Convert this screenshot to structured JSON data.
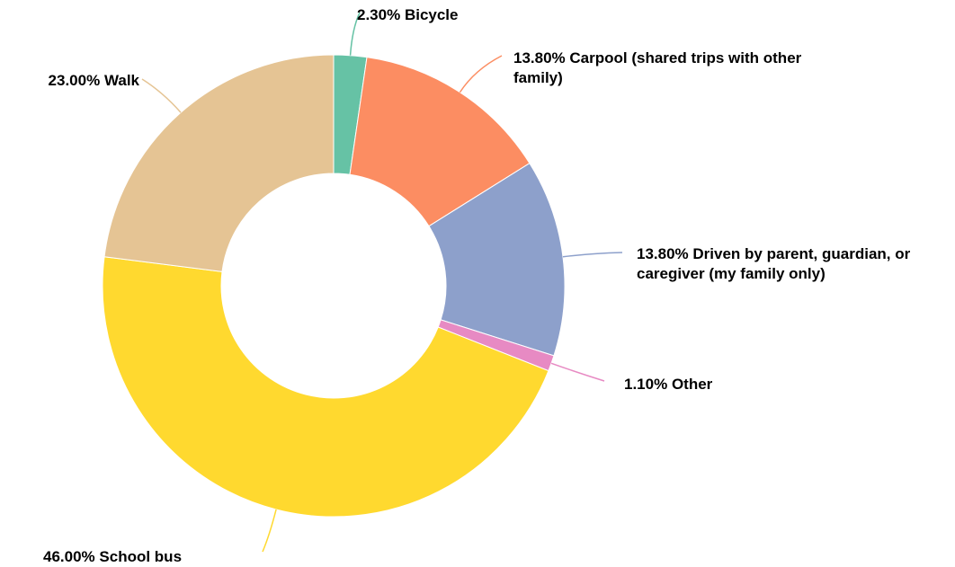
{
  "chart_data": {
    "type": "donut",
    "categories": [
      "Bicycle",
      "Carpool (shared trips with other family)",
      "Driven by parent, guardian, or caregiver (my family only)",
      "Other",
      "School bus",
      "Walk"
    ],
    "values": [
      2.3,
      13.8,
      13.8,
      1.1,
      46.0,
      23.0
    ],
    "value_labels": [
      "2.30%",
      "13.80%",
      "13.80%",
      "1.10%",
      "46.00%",
      "23.00%"
    ],
    "colors": [
      "#66c2a5",
      "#fc8d62",
      "#8da0cb",
      "#e78ac3",
      "#ffd92f",
      "#e5c494"
    ]
  }
}
